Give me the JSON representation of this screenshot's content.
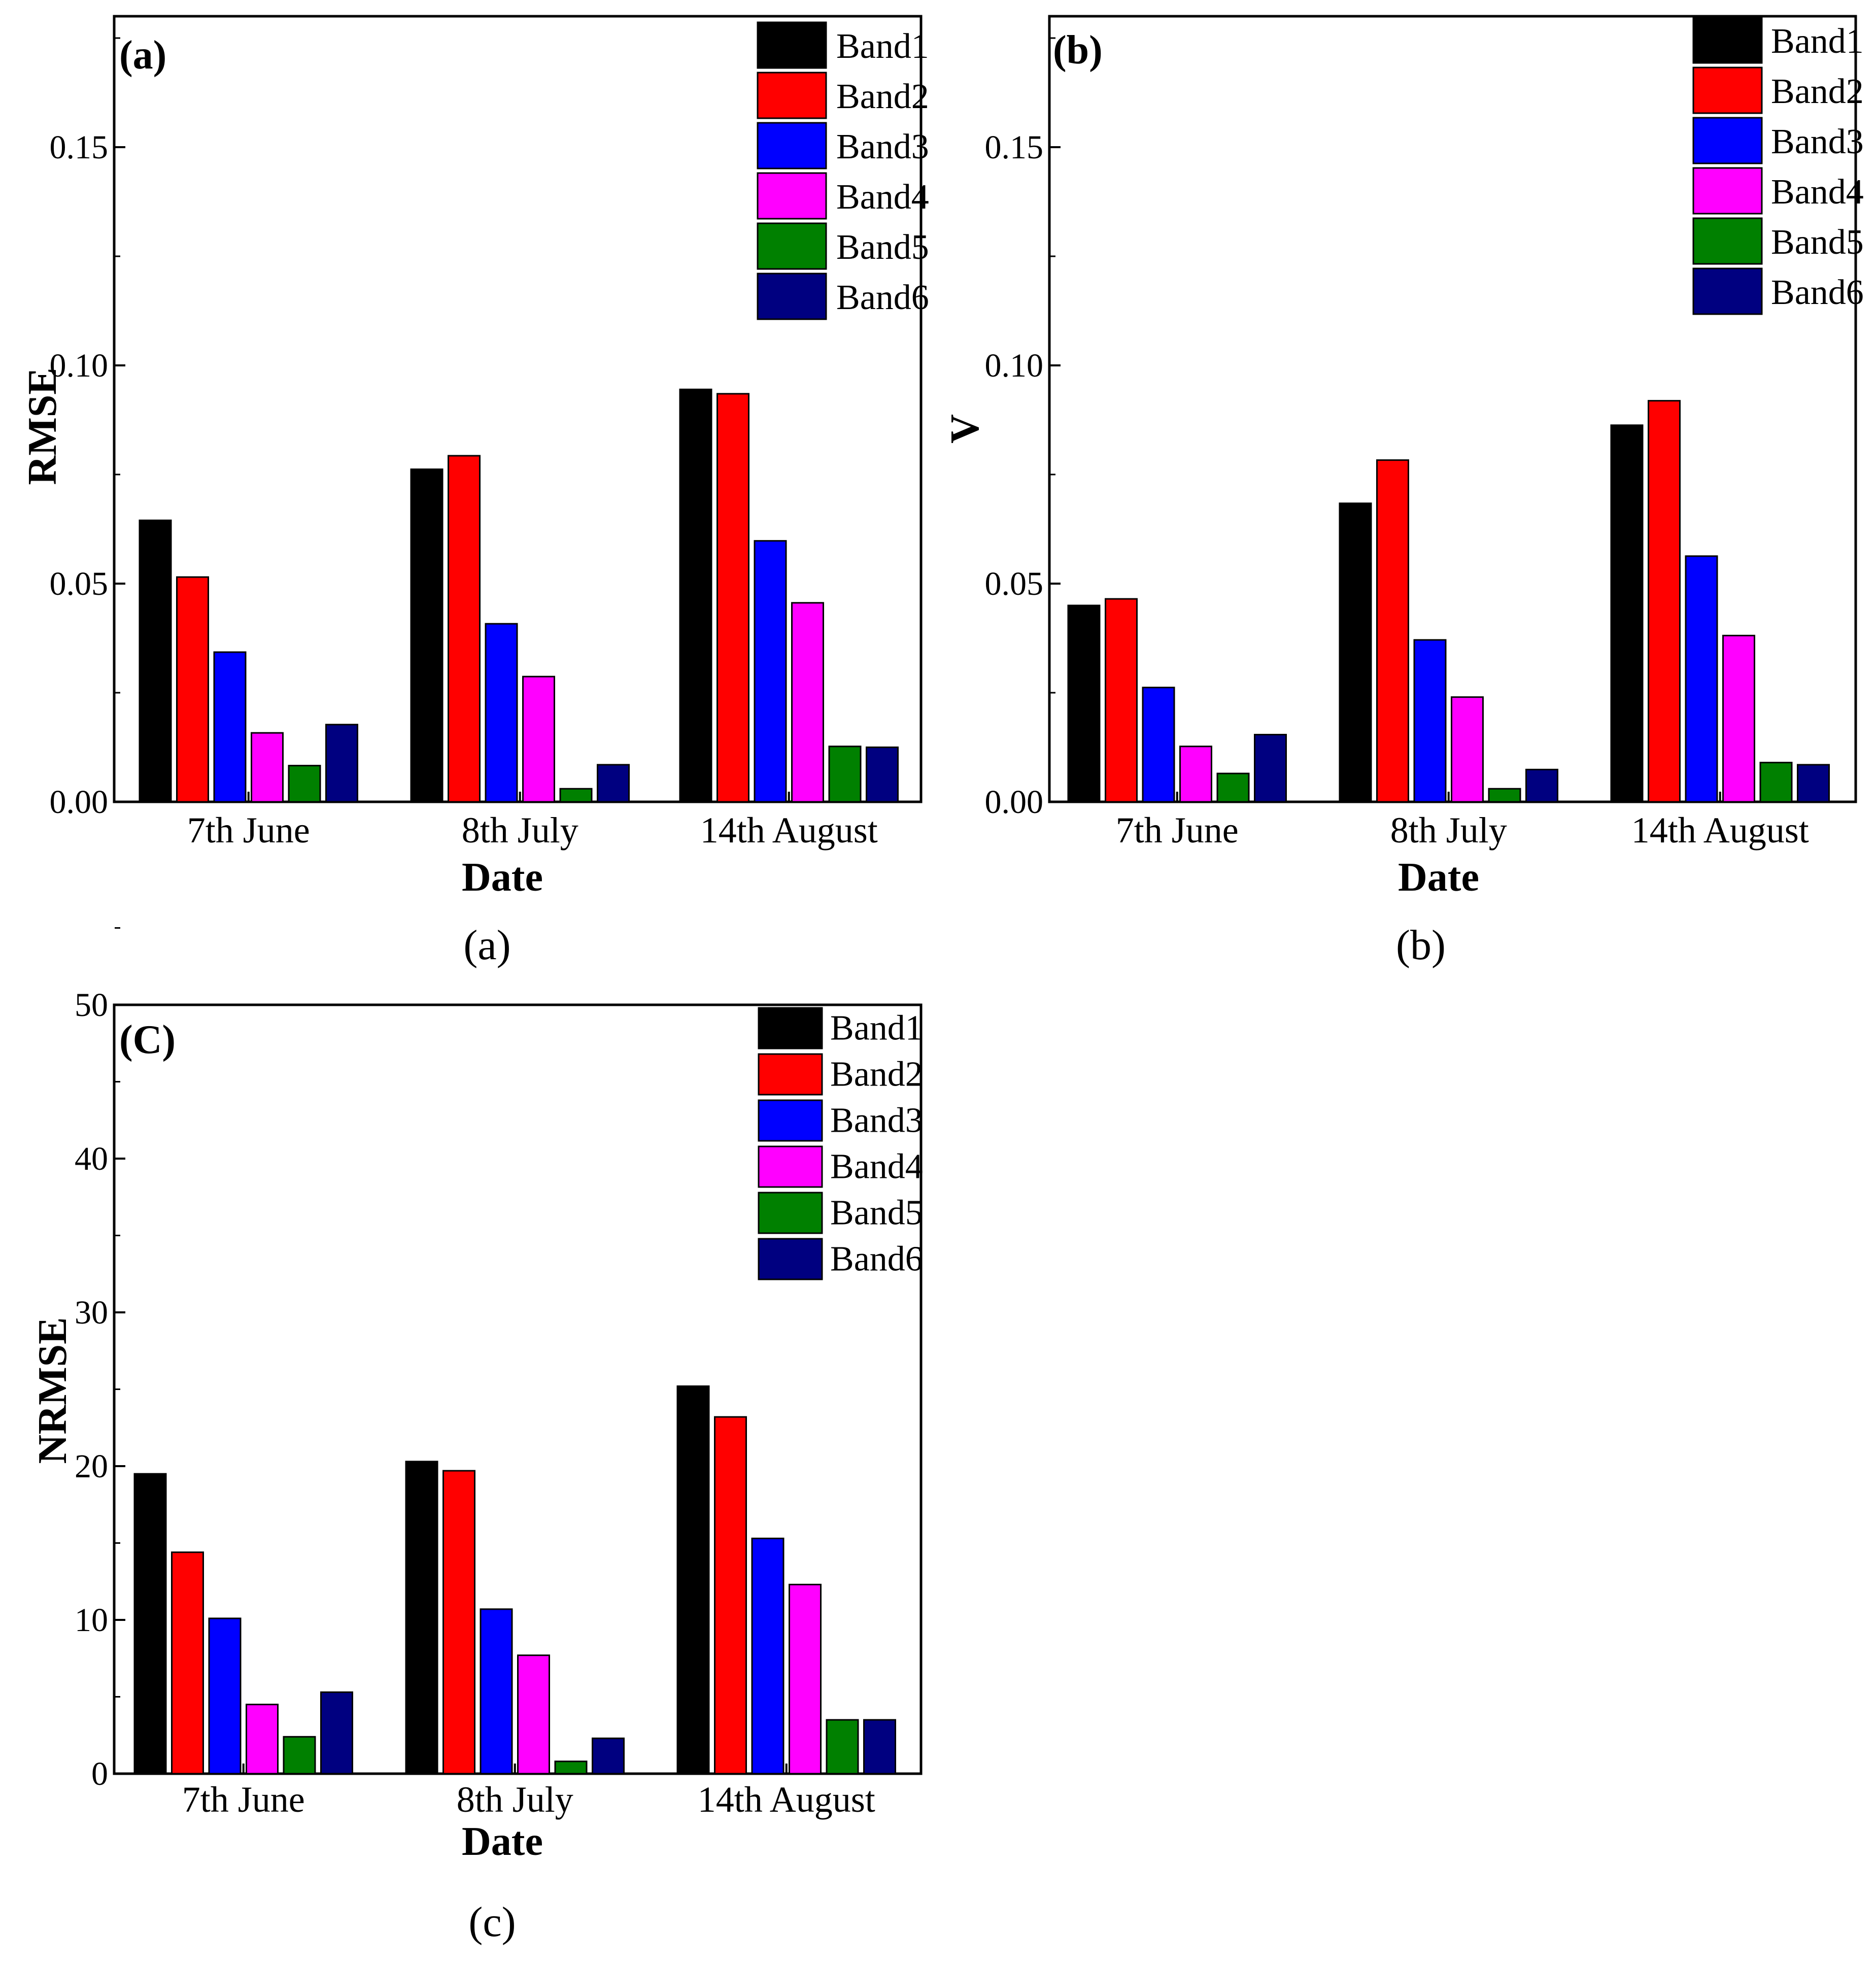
{
  "chart_data": [
    {
      "type": "bar",
      "panel_tag": "(a)",
      "caption": "(a)",
      "title": "",
      "xlabel": "Date",
      "ylabel": "RMSE",
      "categories": [
        "7th June",
        "8th July",
        "14th August"
      ],
      "yticks": [
        "0.00",
        "0.05",
        "0.10",
        "0.15"
      ],
      "ytick_values": [
        0,
        0.05,
        0.1,
        0.15
      ],
      "ylim": [
        0,
        0.18
      ],
      "legend_position": "top-right",
      "series": [
        {
          "name": "Band1",
          "color": "#000000",
          "values": [
            0.0645,
            0.0762,
            0.0945
          ]
        },
        {
          "name": "Band2",
          "color": "#ff0000",
          "values": [
            0.0515,
            0.0793,
            0.0935
          ]
        },
        {
          "name": "Band3",
          "color": "#0000ff",
          "values": [
            0.0343,
            0.0408,
            0.0598
          ]
        },
        {
          "name": "Band4",
          "color": "#ff00ff",
          "values": [
            0.0158,
            0.0287,
            0.0456
          ]
        },
        {
          "name": "Band5",
          "color": "#008000",
          "values": [
            0.0083,
            0.003,
            0.0127
          ]
        },
        {
          "name": "Band6",
          "color": "#000080",
          "values": [
            0.0177,
            0.0085,
            0.0125
          ]
        }
      ]
    },
    {
      "type": "bar",
      "panel_tag": "(b)",
      "caption": "(b)",
      "title": "",
      "xlabel": "Date",
      "ylabel": "V",
      "categories": [
        "7th June",
        "8th July",
        "14th August"
      ],
      "yticks": [
        "0.00",
        "0.05",
        "0.10",
        "0.15"
      ],
      "ytick_values": [
        0,
        0.05,
        0.1,
        0.15
      ],
      "ylim": [
        0,
        0.18
      ],
      "legend_position": "top-right",
      "series": [
        {
          "name": "Band1",
          "color": "#000000",
          "values": [
            0.045,
            0.0684,
            0.0863
          ]
        },
        {
          "name": "Band2",
          "color": "#ff0000",
          "values": [
            0.0465,
            0.0783,
            0.0919
          ]
        },
        {
          "name": "Band3",
          "color": "#0000ff",
          "values": [
            0.0262,
            0.0371,
            0.0563
          ]
        },
        {
          "name": "Band4",
          "color": "#ff00ff",
          "values": [
            0.0127,
            0.024,
            0.0381
          ]
        },
        {
          "name": "Band5",
          "color": "#008000",
          "values": [
            0.0065,
            0.003,
            0.009
          ]
        },
        {
          "name": "Band6",
          "color": "#000080",
          "values": [
            0.0154,
            0.0074,
            0.0085
          ]
        }
      ]
    },
    {
      "type": "bar",
      "panel_tag": "(C)",
      "caption": "(c)",
      "title": "",
      "xlabel": "Date",
      "ylabel": "NRMSE",
      "categories": [
        "7th June",
        "8th July",
        "14th August"
      ],
      "yticks": [
        "0",
        "10",
        "20",
        "30",
        "40",
        "50"
      ],
      "ytick_values": [
        0,
        10,
        20,
        30,
        40,
        50
      ],
      "ylim": [
        0,
        50
      ],
      "legend_position": "top-right",
      "series": [
        {
          "name": "Band1",
          "color": "#000000",
          "values": [
            19.5,
            20.3,
            25.2
          ]
        },
        {
          "name": "Band2",
          "color": "#ff0000",
          "values": [
            14.4,
            19.7,
            23.2
          ]
        },
        {
          "name": "Band3",
          "color": "#0000ff",
          "values": [
            10.1,
            10.7,
            15.3
          ]
        },
        {
          "name": "Band4",
          "color": "#ff00ff",
          "values": [
            4.5,
            7.7,
            12.3
          ]
        },
        {
          "name": "Band5",
          "color": "#008000",
          "values": [
            2.4,
            0.8,
            3.5
          ]
        },
        {
          "name": "Band6",
          "color": "#000080",
          "values": [
            5.3,
            2.3,
            3.5
          ]
        }
      ]
    }
  ]
}
